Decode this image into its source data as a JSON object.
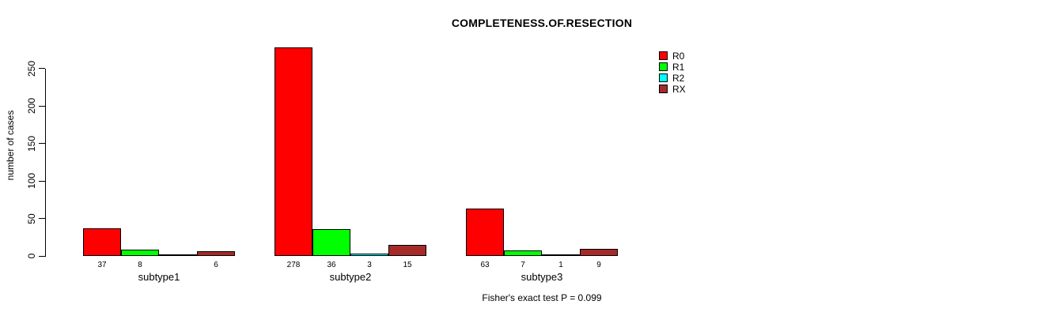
{
  "chart_data": {
    "type": "bar",
    "title": "COMPLETENESS.OF.RESECTION",
    "ylabel": "number of cases",
    "xlabel": "",
    "categories": [
      "subtype1",
      "subtype2",
      "subtype3"
    ],
    "series": [
      {
        "name": "R0",
        "color": "#ff0000",
        "values": [
          37,
          278,
          63
        ]
      },
      {
        "name": "R1",
        "color": "#00ff00",
        "values": [
          8,
          36,
          7
        ]
      },
      {
        "name": "R2",
        "color": "#00ffff",
        "values": [
          0,
          3,
          1
        ]
      },
      {
        "name": "RX",
        "color": "#a52a2a",
        "values": [
          6,
          15,
          9
        ]
      }
    ],
    "bar_labels": [
      [
        "37",
        "8",
        "",
        "6"
      ],
      [
        "278",
        "36",
        "3",
        "15"
      ],
      [
        "63",
        "7",
        "1",
        "9"
      ]
    ],
    "y_ticks": [
      0,
      50,
      100,
      150,
      200,
      250
    ],
    "ylim": [
      0,
      250
    ],
    "grid": false,
    "legend_position": "top-right",
    "annotation": "Fisher's exact test P = 0.099",
    "colors": {
      "background": "#ffffff",
      "axis": "#000000",
      "text": "#000000"
    }
  }
}
